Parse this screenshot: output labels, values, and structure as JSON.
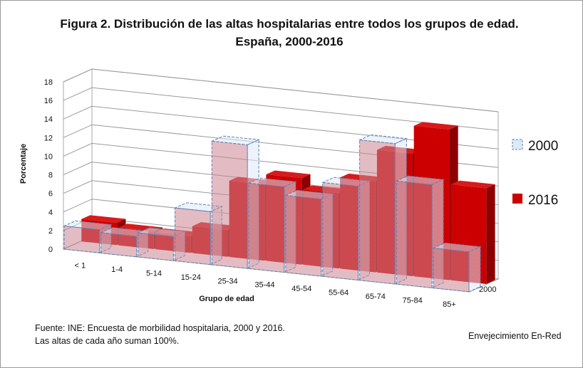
{
  "title": "Figura 2. Distribución de las altas hospitalarias entre todos los grupos de edad. España, 2000-2016",
  "source_line1": "Fuente: INE: Encuesta de morbilidad hospitalaria, 2000  y 2016.",
  "source_line2": "Las altas de cada año suman 100%.",
  "credit": "Envejecimiento En-Red",
  "colors": {
    "s2000_fill": "#dce9f7",
    "s2000_edge": "#5e7fb5",
    "s2016_front": "#cc0000",
    "s2016_top": "#d81a1a",
    "s2016_side": "#8c0000",
    "overlap": "#cc8592"
  },
  "chart_data": {
    "type": "bar",
    "subtype": "3d-clustered-depth",
    "xlabel": "Grupo de edad",
    "ylabel": "Porcentaje",
    "ylim": [
      0,
      18
    ],
    "yticks": [
      0,
      2,
      4,
      6,
      8,
      10,
      12,
      14,
      16,
      18
    ],
    "grid": true,
    "legend_position": "right",
    "depth_axis_label": "2000",
    "categories": [
      "< 1",
      "1-4",
      "5-14",
      "15-24",
      "25-34",
      "35-44",
      "45-54",
      "55-64",
      "65-74",
      "75-84",
      "85+"
    ],
    "series": [
      {
        "name": "2000",
        "values": [
          2.5,
          2.2,
          2.6,
          5.7,
          13.3,
          9.2,
          8.3,
          10.1,
          15.1,
          11.1,
          4.3
        ]
      },
      {
        "name": "2016",
        "values": [
          2.4,
          1.9,
          1.8,
          2.9,
          8.2,
          9.3,
          8.1,
          9.8,
          13.2,
          16.2,
          10.3
        ]
      }
    ]
  }
}
